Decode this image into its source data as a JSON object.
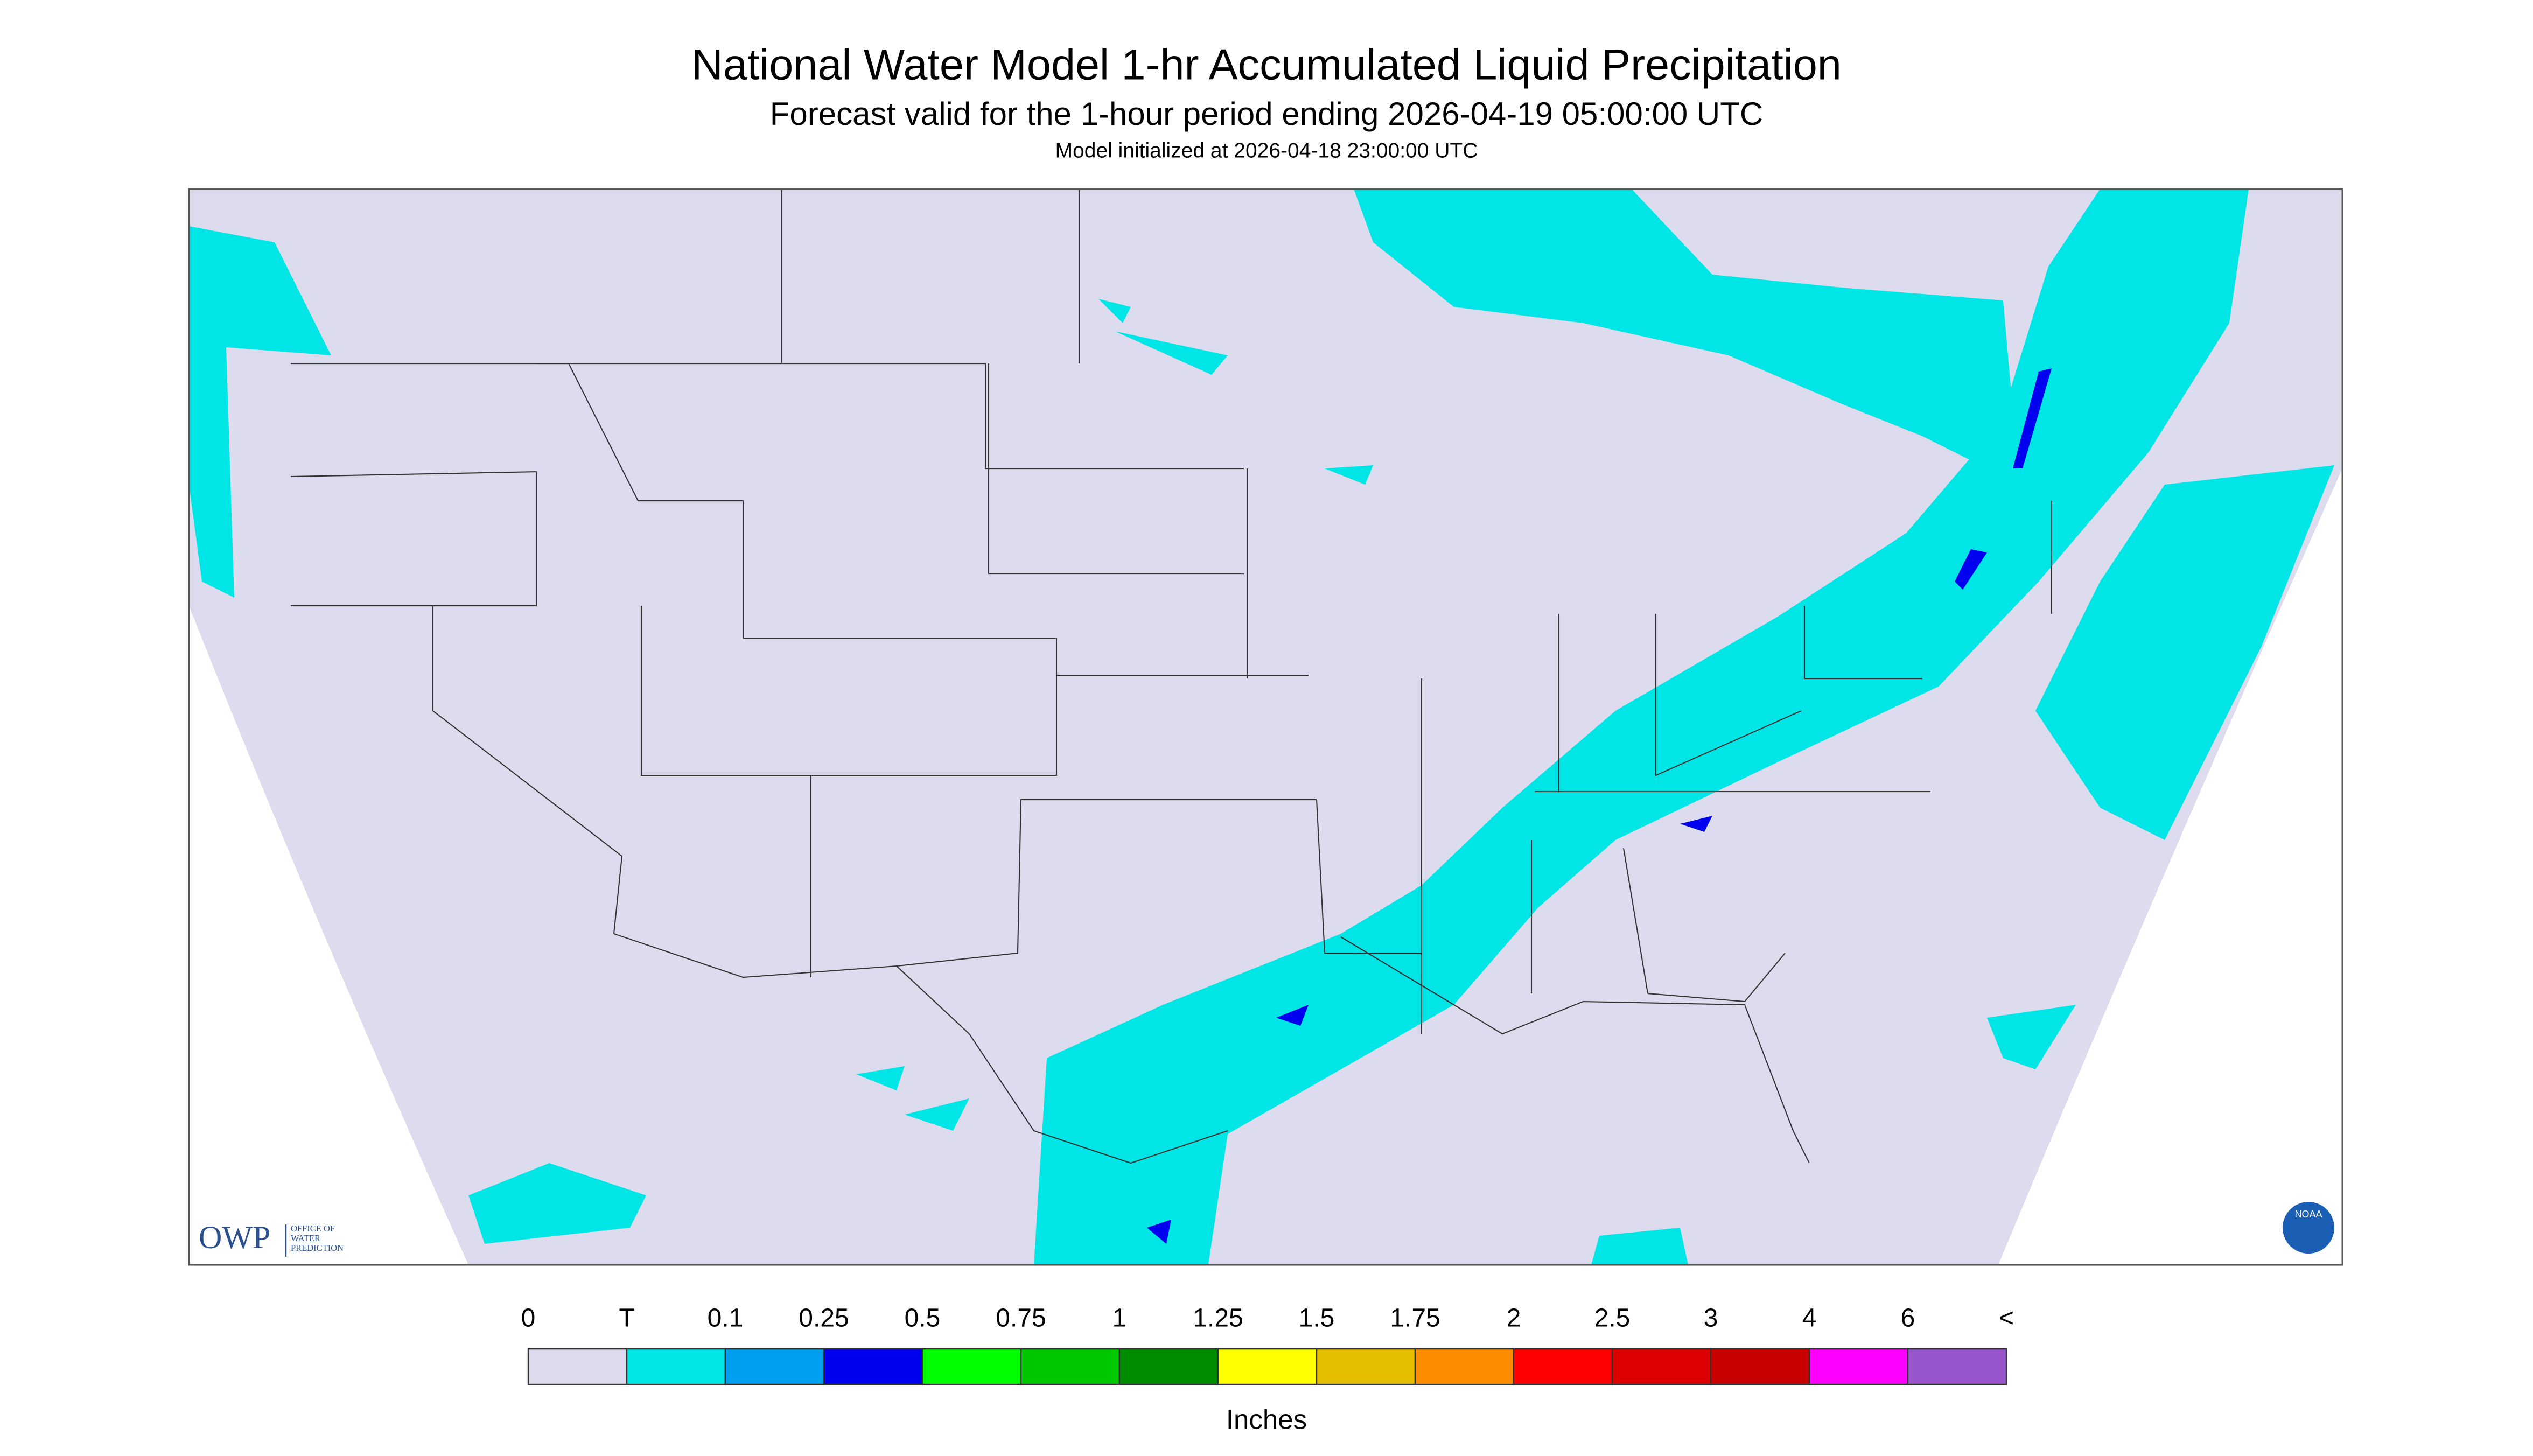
{
  "header": {
    "title": "National Water Model 1-hr Accumulated Liquid Precipitation",
    "subtitle": "Forecast valid for the 1-hour period ending 2026-04-19 05:00:00 UTC",
    "initialized": "Model initialized at 2026-04-18 23:00:00 UTC"
  },
  "logos": {
    "owp": "OWP",
    "owp_name": [
      "OFFICE OF",
      "WATER",
      "PREDICTION"
    ],
    "noaa": "NOAA"
  },
  "legend": {
    "labels": [
      "0",
      "T",
      "0.1",
      "0.25",
      "0.5",
      "0.75",
      "1",
      "1.25",
      "1.5",
      "1.75",
      "2",
      "2.5",
      "3",
      "4",
      "6",
      "<"
    ],
    "colors": [
      "#dcdcee",
      "#00e6e6",
      "#00a0f0",
      "#0000f0",
      "#00ff00",
      "#00c800",
      "#008c00",
      "#ffff00",
      "#e6be00",
      "#ff8c00",
      "#ff0000",
      "#dc0000",
      "#c80000",
      "#ff00ff",
      "#9955cc"
    ],
    "units": "Inches"
  }
}
